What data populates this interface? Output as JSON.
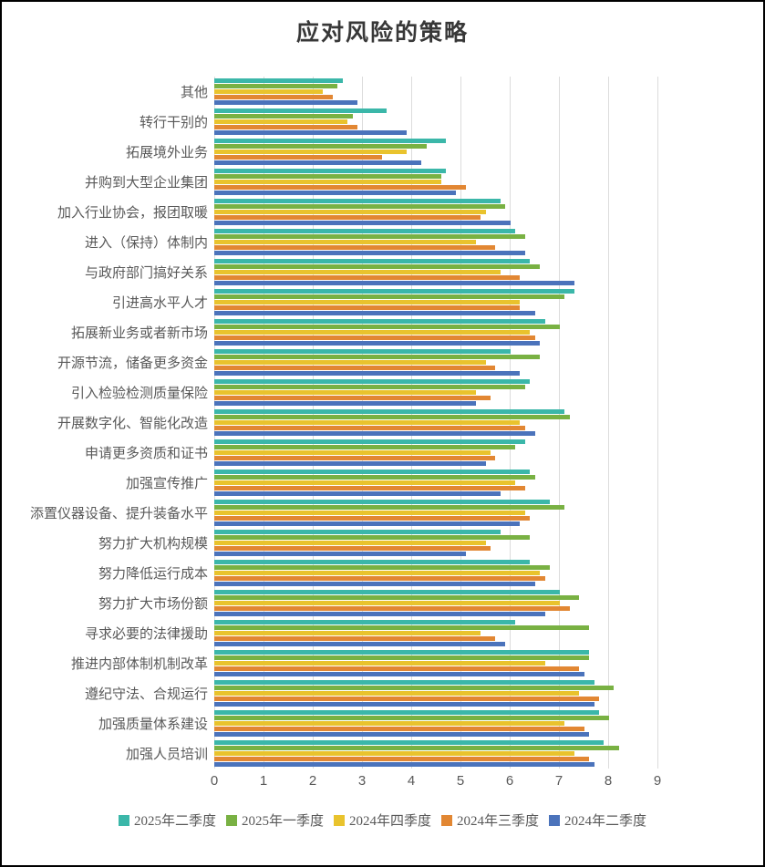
{
  "chart_data": {
    "type": "bar",
    "orientation": "horizontal",
    "title": "应对风险的策略",
    "xlim": [
      0,
      9
    ],
    "x_ticks": [
      0,
      1,
      2,
      3,
      4,
      5,
      6,
      7,
      8,
      9
    ],
    "grid": "vertical-gridlines",
    "gridline_color": "#dcdcdc",
    "legend_position": "bottom",
    "categories": [
      "其他",
      "转行干别的",
      "拓展境外业务",
      "并购到大型企业集团",
      "加入行业协会，报团取暖",
      "进入（保持）体制内",
      "与政府部门搞好关系",
      "引进高水平人才",
      "拓展新业务或者新市场",
      "开源节流，储备更多资金",
      "引入检验检测质量保险",
      "开展数字化、智能化改造",
      "申请更多资质和证书",
      "加强宣传推广",
      "添置仪器设备、提升装备水平",
      "努力扩大机构规模",
      "努力降低运行成本",
      "努力扩大市场份额",
      "寻求必要的法律援助",
      "推进内部体制机制改革",
      "遵纪守法、合规运行",
      "加强质量体系建设",
      "加强人员培训"
    ],
    "series": [
      {
        "name": "2025年二季度",
        "color": "#3BB7A9",
        "values": [
          2.6,
          3.5,
          4.7,
          4.7,
          5.8,
          6.1,
          6.4,
          7.3,
          6.7,
          6.0,
          6.4,
          7.1,
          6.3,
          6.4,
          6.8,
          5.8,
          6.4,
          7.0,
          6.1,
          7.6,
          7.7,
          7.8,
          7.9
        ]
      },
      {
        "name": "2025年一季度",
        "color": "#79B143",
        "values": [
          2.5,
          2.8,
          4.3,
          4.6,
          5.9,
          6.3,
          6.6,
          7.1,
          7.0,
          6.6,
          6.3,
          7.2,
          6.1,
          6.5,
          7.1,
          6.4,
          6.8,
          7.4,
          7.6,
          7.6,
          8.1,
          8.0,
          8.2
        ]
      },
      {
        "name": "2024年四季度",
        "color": "#E9C32D",
        "values": [
          2.2,
          2.7,
          3.9,
          4.6,
          5.5,
          5.3,
          5.8,
          6.2,
          6.4,
          5.5,
          5.3,
          6.2,
          5.6,
          6.1,
          6.3,
          5.5,
          6.6,
          7.0,
          5.4,
          6.7,
          7.4,
          7.1,
          7.3
        ]
      },
      {
        "name": "2024年三季度",
        "color": "#E28733",
        "values": [
          2.4,
          2.9,
          3.4,
          5.1,
          5.4,
          5.7,
          6.2,
          6.2,
          6.5,
          5.7,
          5.6,
          6.3,
          5.7,
          6.3,
          6.4,
          5.6,
          6.7,
          7.2,
          5.7,
          7.4,
          7.8,
          7.5,
          7.6
        ]
      },
      {
        "name": "2024年二季度",
        "color": "#4B73BB",
        "values": [
          2.9,
          3.9,
          4.2,
          4.9,
          6.0,
          6.3,
          7.3,
          6.5,
          6.6,
          6.2,
          5.3,
          6.5,
          5.5,
          5.8,
          6.2,
          5.1,
          6.5,
          6.7,
          5.9,
          7.5,
          7.7,
          7.6,
          7.7
        ]
      }
    ]
  }
}
